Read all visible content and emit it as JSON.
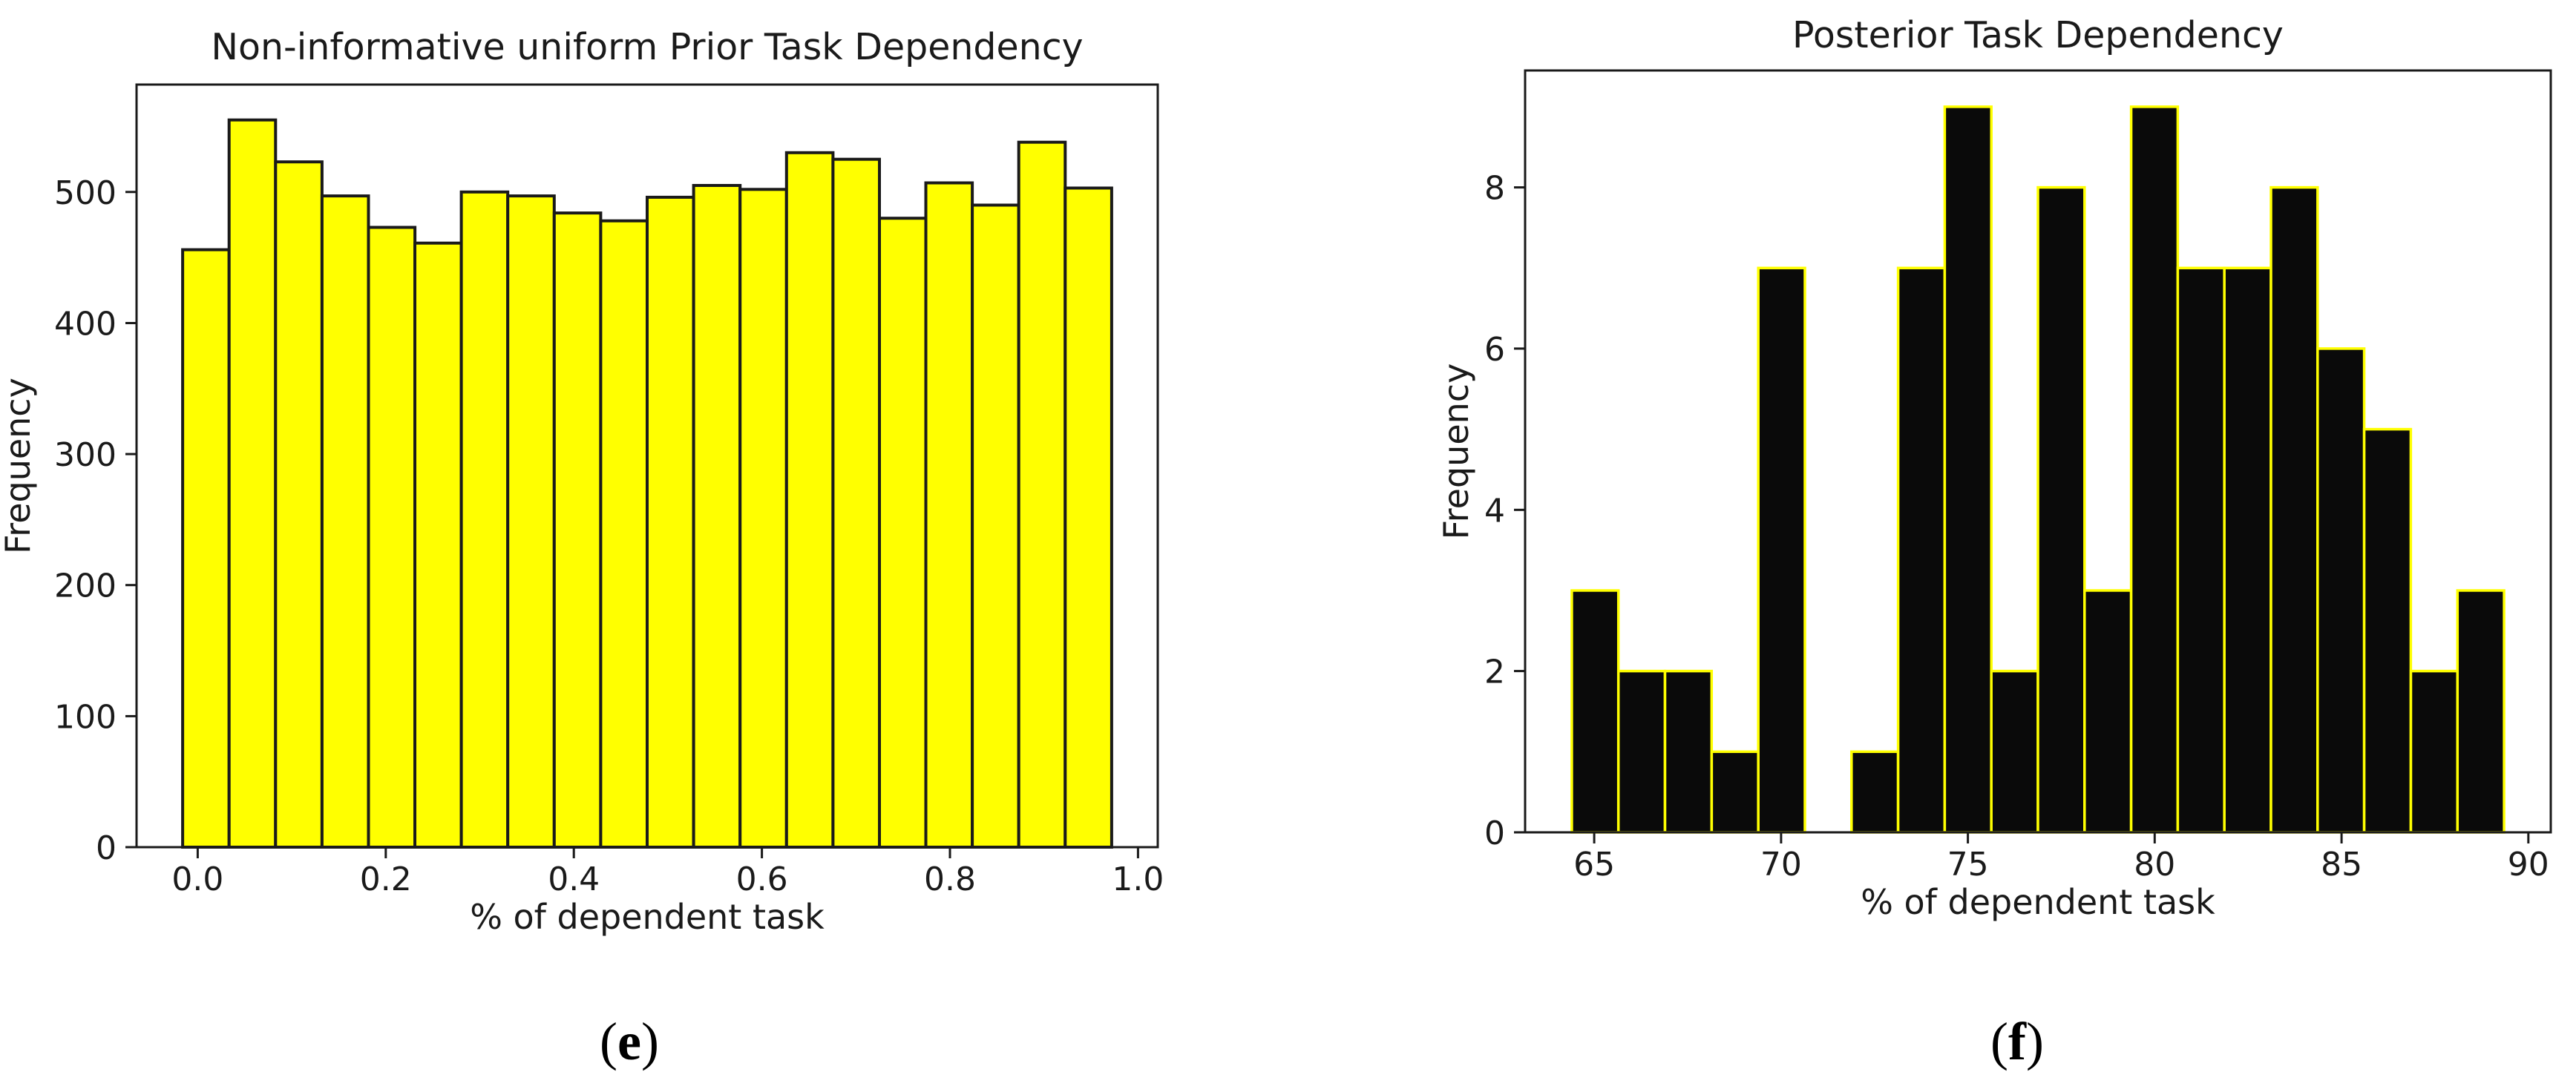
{
  "figure": {
    "background_color": "#ffffff",
    "text_color": "#1a1a1a",
    "panel_label_color": "#000000"
  },
  "chart_data": [
    {
      "type": "bar",
      "subtype": "histogram",
      "title": "Non-informative uniform Prior Task Dependency",
      "xlabel": "% of dependent task",
      "ylabel": "Frequency",
      "panel_label": "(e)",
      "panel_label_parts": {
        "open": "(",
        "letter": "e",
        "close": ")"
      },
      "bar_fill": "#ffff00",
      "bar_edge": "#1a1a1a",
      "bin_start": -0.016,
      "bin_width": 0.0494,
      "values": [
        456,
        555,
        523,
        497,
        473,
        461,
        500,
        497,
        484,
        478,
        496,
        505,
        502,
        530,
        525,
        480,
        507,
        490,
        538,
        503
      ],
      "xticks": {
        "values": [
          0.0,
          0.2,
          0.4,
          0.6,
          0.8,
          1.0
        ],
        "labels": [
          "0.0",
          "0.2",
          "0.4",
          "0.6",
          "0.8",
          "1.0"
        ]
      },
      "yticks": {
        "values": [
          0,
          100,
          200,
          300,
          400,
          500
        ],
        "labels": [
          "0",
          "100",
          "200",
          "300",
          "400",
          "500"
        ]
      },
      "xlim": [
        -0.065,
        1.021
      ],
      "ylim": [
        0,
        582
      ],
      "grid": false,
      "legend": null
    },
    {
      "type": "bar",
      "subtype": "histogram",
      "title": "Posterior Task Dependency",
      "xlabel": "% of dependent task",
      "ylabel": "Frequency",
      "panel_label": "(f)",
      "panel_label_parts": {
        "open": "(",
        "letter": "f",
        "close": ")"
      },
      "bar_fill": "#0a0a0a",
      "bar_edge": "#ffff00",
      "bin_start": 64.4,
      "bin_width": 1.2475,
      "values": [
        3,
        2,
        2,
        1,
        7,
        0,
        1,
        7,
        9,
        2,
        8,
        3,
        9,
        7,
        7,
        8,
        6,
        5,
        2,
        3
      ],
      "xticks": {
        "values": [
          65,
          70,
          75,
          80,
          85,
          90
        ],
        "labels": [
          "65",
          "70",
          "75",
          "80",
          "85",
          "90"
        ]
      },
      "yticks": {
        "values": [
          0,
          2,
          4,
          6,
          8
        ],
        "labels": [
          "0",
          "2",
          "4",
          "6",
          "8"
        ]
      },
      "xlim": [
        63.15,
        90.6
      ],
      "ylim": [
        0,
        9.45
      ],
      "grid": false,
      "legend": null
    }
  ]
}
